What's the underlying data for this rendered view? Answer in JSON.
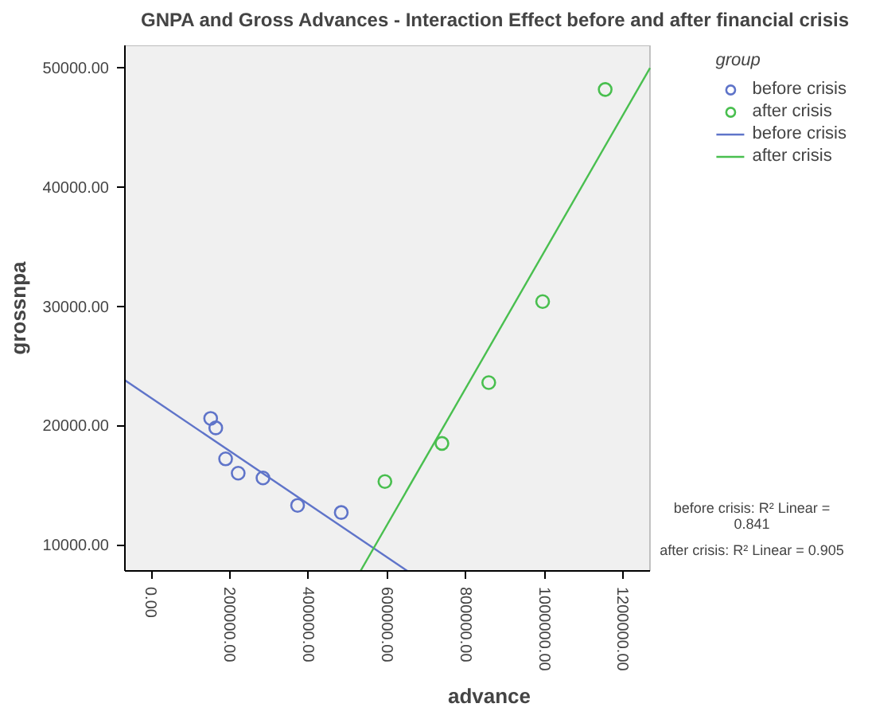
{
  "chart_data": {
    "type": "scatter",
    "title": "GNPA and Gross Advances - Interaction Effect before and after financial crisis",
    "xlabel": "advance",
    "ylabel": "grossnpa",
    "legend_title": "group",
    "series": [
      {
        "name": "before crisis",
        "marker": "circle",
        "color": "#5f74c9",
        "x": [
          151000,
          164000,
          189000,
          221000,
          284000,
          372000,
          483000
        ],
        "values": [
          20600,
          19800,
          17200,
          16000,
          15600,
          13300,
          12700
        ]
      },
      {
        "name": "after crisis",
        "marker": "circle",
        "color": "#49bf4f",
        "x": [
          594000,
          739000,
          858000,
          995000,
          1154000
        ],
        "values": [
          15300,
          18500,
          23600,
          30400,
          48200
        ]
      },
      {
        "name": "before crisis",
        "type": "line",
        "marker": "none",
        "color": "#5f74c9",
        "x": [
          -67000,
          651000
        ],
        "values": [
          23800,
          7800
        ]
      },
      {
        "name": "after crisis",
        "type": "line",
        "marker": "none",
        "color": "#49bf4f",
        "x": [
          532000,
          1268000
        ],
        "values": [
          7800,
          50000
        ]
      }
    ],
    "xlim": [
      -67000,
      1268000
    ],
    "ylim": [
      7800,
      51900
    ],
    "xticks": [
      {
        "value": 0,
        "label": "0.00"
      },
      {
        "value": 200000,
        "label": "200000.00"
      },
      {
        "value": 400000,
        "label": "400000.00"
      },
      {
        "value": 600000,
        "label": "600000.00"
      },
      {
        "value": 800000,
        "label": "800000.00"
      },
      {
        "value": 1000000,
        "label": "1000000.00"
      },
      {
        "value": 1200000,
        "label": "1200000.00"
      }
    ],
    "yticks": [
      {
        "value": 10000,
        "label": "10000.00"
      },
      {
        "value": 20000,
        "label": "20000.00"
      },
      {
        "value": 30000,
        "label": "30000.00"
      },
      {
        "value": 40000,
        "label": "40000.00"
      },
      {
        "value": 50000,
        "label": "50000.00"
      }
    ],
    "annotations": [
      "before crisis: R² Linear = 0.841",
      "after crisis: R² Linear = 0.905"
    ],
    "legend": "right",
    "line_style": "solid"
  }
}
